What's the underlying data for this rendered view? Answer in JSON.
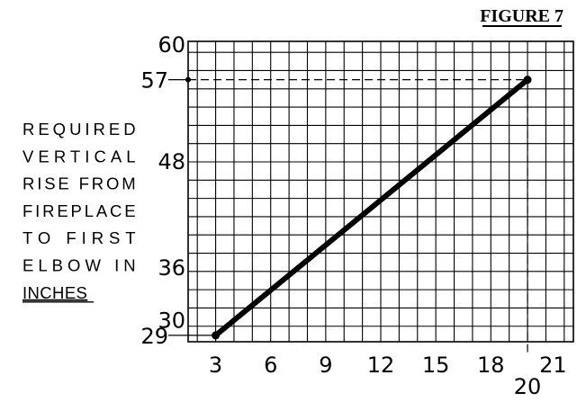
{
  "figure_label": "FIGURE 7",
  "chart_data": {
    "type": "line",
    "title": "",
    "ylabel_lines": [
      "REQUIRED",
      "VERTICAL",
      "RISE FROM",
      "FIREPLACE",
      "TO FIRST",
      "ELBOW IN",
      "INCHES"
    ],
    "ylabel_underlined_line": "INCHES",
    "xlabel": "",
    "x_ticks": [
      3,
      6,
      9,
      12,
      15,
      18,
      21
    ],
    "y_ticks": [
      30,
      36,
      48,
      60
    ],
    "xlim": [
      1.5,
      22.5
    ],
    "ylim": [
      28.3,
      61.2
    ],
    "grid": true,
    "grid_x_step": 1,
    "grid_y_step": 2,
    "series": [
      {
        "x": [
          3,
          20
        ],
        "y": [
          29,
          57
        ],
        "color": "#000000"
      }
    ],
    "markers": [
      {
        "x": 3,
        "y": 29,
        "label": "29"
      },
      {
        "x": 20,
        "y": 57,
        "x_label": "20",
        "y_label": "57"
      }
    ],
    "reference_point": {
      "x": 20,
      "y": 57
    }
  }
}
